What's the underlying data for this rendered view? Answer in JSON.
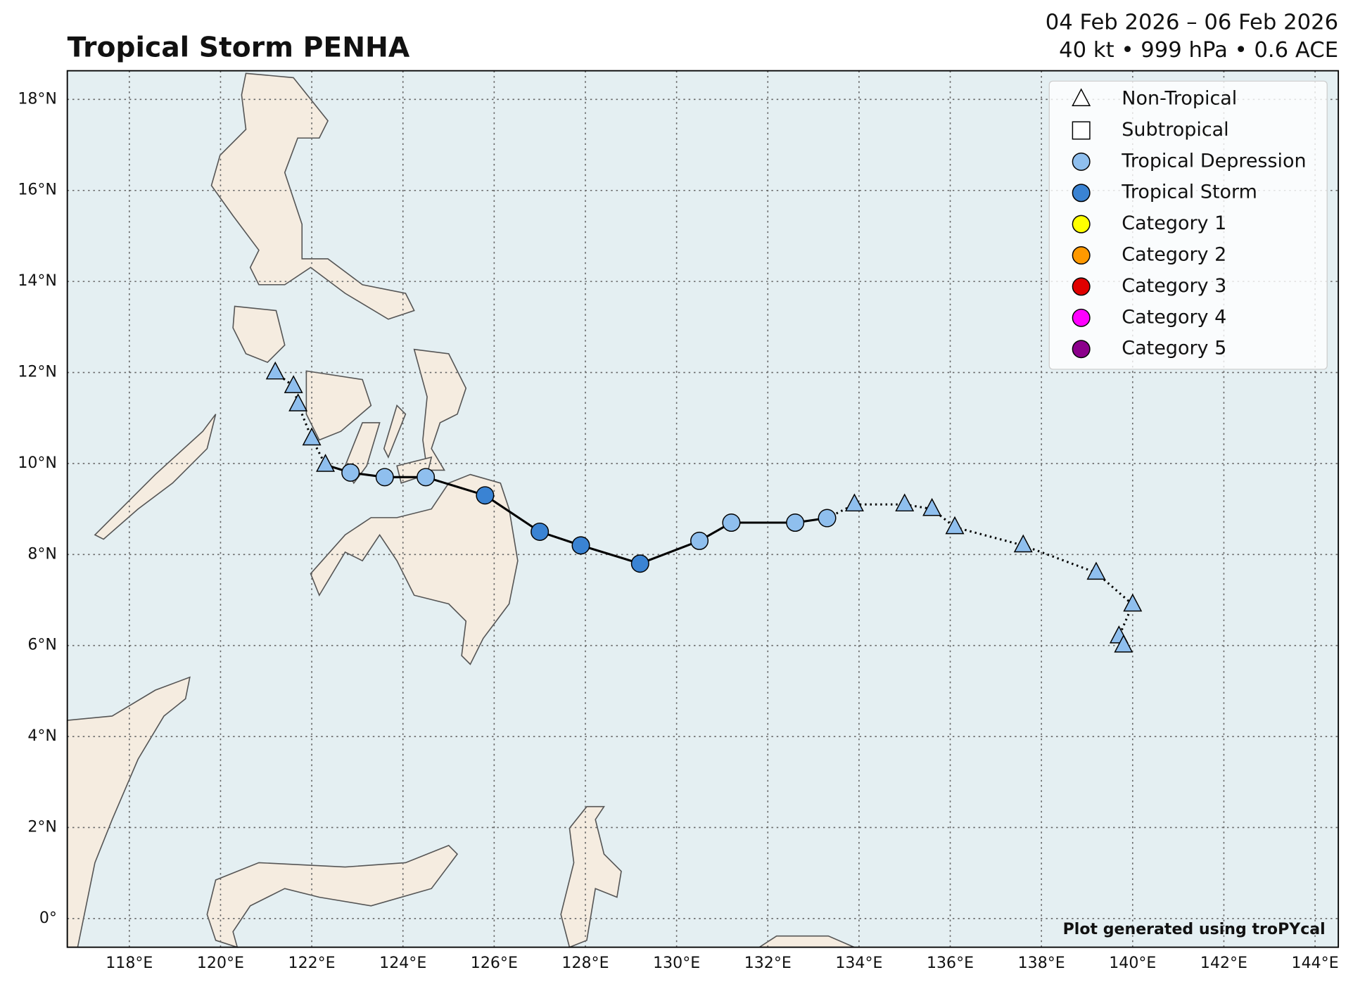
{
  "chart_data": {
    "type": "track",
    "title": "Tropical Storm PENHA",
    "subtitle": "04 Feb 2026 – 06 Feb 2026",
    "stats": "40 kt • 999 hPa • 0.6 ACE",
    "credit": "Plot generated using troPYcal",
    "x": [
      121.2,
      121.6,
      121.7,
      122.0,
      122.3,
      122.85,
      123.6,
      124.5,
      125.8,
      127.0,
      127.9,
      129.2,
      130.5,
      131.2,
      132.6,
      133.3,
      133.9,
      135.0,
      135.6,
      136.1,
      137.6,
      139.2,
      140.0,
      139.7,
      139.8
    ],
    "y": [
      12.0,
      11.7,
      11.3,
      10.55,
      9.97,
      9.8,
      9.7,
      9.7,
      9.3,
      8.5,
      8.2,
      7.8,
      8.3,
      8.7,
      8.7,
      8.8,
      9.1,
      9.1,
      9.0,
      8.6,
      8.2,
      7.6,
      6.9,
      6.2,
      6.0
    ],
    "point_markers": [
      "triangle",
      "triangle",
      "triangle",
      "triangle",
      "triangle",
      "circle",
      "circle",
      "circle",
      "circle",
      "circle",
      "circle",
      "circle",
      "circle",
      "circle",
      "circle",
      "circle",
      "triangle",
      "triangle",
      "triangle",
      "triangle",
      "triangle",
      "triangle",
      "triangle",
      "triangle",
      "triangle"
    ],
    "point_colors": [
      "#8fbfee",
      "#8fbfee",
      "#8fbfee",
      "#8fbfee",
      "#8fbfee",
      "#8fbfee",
      "#8fbfee",
      "#8fbfee",
      "#3a83d3",
      "#3a83d3",
      "#3a83d3",
      "#3a83d3",
      "#8fbfee",
      "#8fbfee",
      "#8fbfee",
      "#8fbfee",
      "#8fbfee",
      "#8fbfee",
      "#8fbfee",
      "#8fbfee",
      "#8fbfee",
      "#8fbfee",
      "#8fbfee",
      "#8fbfee",
      "#8fbfee"
    ],
    "legend": [
      {
        "name": "Non-Tropical",
        "marker": "triangle",
        "color": "#ffffff"
      },
      {
        "name": "Subtropical",
        "marker": "square",
        "color": "#ffffff"
      },
      {
        "name": "Tropical Depression",
        "marker": "circle",
        "color": "#8fbfee"
      },
      {
        "name": "Tropical Storm",
        "marker": "circle",
        "color": "#3a83d3"
      },
      {
        "name": "Category 1",
        "marker": "circle",
        "color": "#ffff00"
      },
      {
        "name": "Category 2",
        "marker": "circle",
        "color": "#ff9900"
      },
      {
        "name": "Category 3",
        "marker": "circle",
        "color": "#e00000"
      },
      {
        "name": "Category 4",
        "marker": "circle",
        "color": "#ff00ff"
      },
      {
        "name": "Category 5",
        "marker": "circle",
        "color": "#8b008b"
      }
    ],
    "xlim": [
      116.64,
      144.51
    ],
    "ylim": [
      -0.63,
      18.63
    ],
    "xticks": [
      {
        "value": 118,
        "label": "118°E"
      },
      {
        "value": 120,
        "label": "120°E"
      },
      {
        "value": 122,
        "label": "122°E"
      },
      {
        "value": 124,
        "label": "124°E"
      },
      {
        "value": 126,
        "label": "126°E"
      },
      {
        "value": 128,
        "label": "128°E"
      },
      {
        "value": 130,
        "label": "130°E"
      },
      {
        "value": 132,
        "label": "132°E"
      },
      {
        "value": 134,
        "label": "134°E"
      },
      {
        "value": 136,
        "label": "136°E"
      },
      {
        "value": 138,
        "label": "138°E"
      },
      {
        "value": 140,
        "label": "140°E"
      },
      {
        "value": 142,
        "label": "142°E"
      },
      {
        "value": 144,
        "label": "144°E"
      }
    ],
    "yticks": [
      {
        "value": 0,
        "label": "0°"
      },
      {
        "value": 2,
        "label": "2°N"
      },
      {
        "value": 4,
        "label": "4°N"
      },
      {
        "value": 6,
        "label": "6°N"
      },
      {
        "value": 8,
        "label": "8°N"
      },
      {
        "value": 10,
        "label": "10°N"
      },
      {
        "value": 12,
        "label": "12°N"
      },
      {
        "value": 14,
        "label": "14°N"
      },
      {
        "value": 16,
        "label": "16°N"
      },
      {
        "value": 18,
        "label": "18°N"
      }
    ],
    "grid": true
  }
}
